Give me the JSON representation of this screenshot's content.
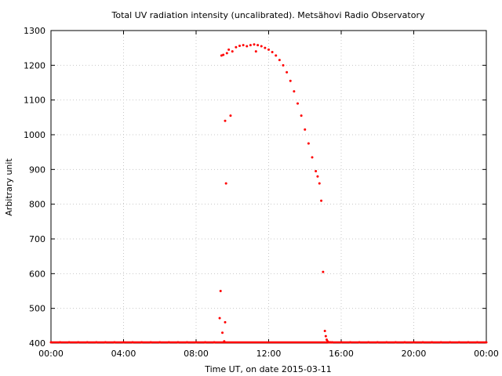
{
  "chart_data": {
    "type": "scatter",
    "title": "Total UV radiation intensity (uncalibrated). Metsähovi Radio Observatory",
    "xlabel": "Time UT, on date 2015-03-11",
    "ylabel": "Arbitrary unit",
    "xlim": [
      0,
      24
    ],
    "ylim": [
      400,
      1300
    ],
    "x_ticks": [
      {
        "value": 0,
        "label": "00:00"
      },
      {
        "value": 4,
        "label": "04:00"
      },
      {
        "value": 8,
        "label": "08:00"
      },
      {
        "value": 12,
        "label": "12:00"
      },
      {
        "value": 16,
        "label": "16:00"
      },
      {
        "value": 20,
        "label": "20:00"
      },
      {
        "value": 24,
        "label": "00:00"
      }
    ],
    "y_ticks": [
      400,
      500,
      600,
      700,
      800,
      900,
      1000,
      1100,
      1200,
      1300
    ],
    "grid": true,
    "marker_color": "#ff0000",
    "series": [
      {
        "x": [
          0.0,
          0.5,
          1.0,
          1.5,
          2.0,
          2.5,
          3.0,
          3.5,
          4.0,
          4.5,
          5.0,
          5.5,
          6.0,
          6.5,
          7.0,
          7.5,
          8.0,
          8.5,
          9.0,
          9.3,
          9.35,
          9.4,
          9.45,
          9.5,
          9.55,
          9.6,
          9.6,
          9.65,
          9.7,
          9.8,
          9.9,
          10.0,
          10.2,
          10.4,
          10.6,
          10.8,
          11.0,
          11.2,
          11.3,
          11.4,
          11.6,
          11.8,
          12.0,
          12.2,
          12.4,
          12.6,
          12.8,
          13.0,
          13.2,
          13.4,
          13.6,
          13.8,
          14.0,
          14.2,
          14.4,
          14.6,
          14.7,
          14.8,
          14.9,
          15.0,
          15.1,
          15.15,
          15.2,
          15.25,
          15.3,
          15.35,
          15.4,
          15.5,
          16.0,
          16.5,
          17.0,
          17.5,
          18.0,
          18.5,
          19.0,
          19.5,
          20.0,
          20.5,
          21.0,
          21.5,
          22.0,
          22.5,
          23.0,
          23.5,
          24.0
        ],
        "y": [
          400,
          401,
          402,
          401,
          400,
          401,
          402,
          400,
          401,
          400,
          401,
          400,
          402,
          401,
          400,
          401,
          402,
          400,
          402,
          472,
          550,
          1228,
          430,
          1230,
          405,
          460,
          1040,
          860,
          1235,
          1245,
          1055,
          1240,
          1252,
          1256,
          1258,
          1255,
          1258,
          1260,
          1240,
          1258,
          1255,
          1250,
          1245,
          1238,
          1228,
          1215,
          1200,
          1180,
          1155,
          1125,
          1090,
          1055,
          1015,
          975,
          935,
          895,
          880,
          860,
          810,
          605,
          435,
          420,
          410,
          405,
          402,
          401,
          400,
          401,
          400,
          401,
          400,
          401,
          400,
          401,
          400,
          401,
          400,
          401,
          400,
          401,
          400,
          401,
          400,
          401,
          400
        ]
      }
    ]
  }
}
